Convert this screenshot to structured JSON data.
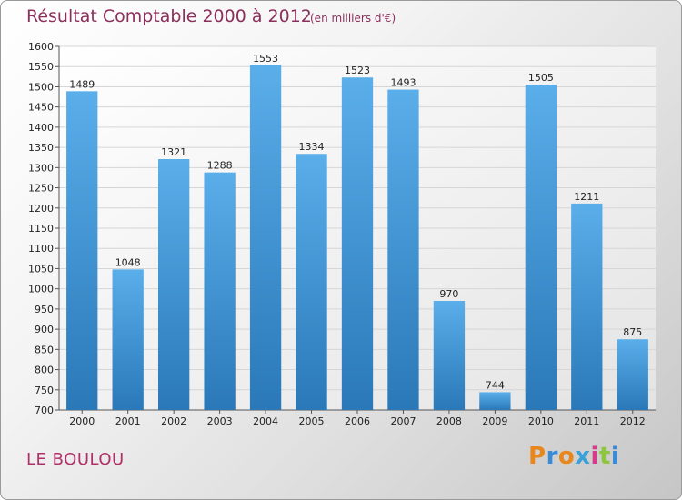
{
  "header": {
    "title": "Résultat Comptable 2000 à 2012",
    "subtitle": "(en milliers d'€)"
  },
  "footer": {
    "commune": "LE BOULOU",
    "logo_text": "Proxiti",
    "logo_colors": [
      "#e8871e",
      "#3a8ad6",
      "#e8871e",
      "#3aa0d8",
      "#d83a8a",
      "#8cc63f",
      "#3a8ad6"
    ]
  },
  "chart_data": {
    "type": "bar",
    "title": "Résultat Comptable 2000 à 2012",
    "subtitle": "(en milliers d'€)",
    "xlabel": "",
    "ylabel": "",
    "categories": [
      "2000",
      "2001",
      "2002",
      "2003",
      "2004",
      "2005",
      "2006",
      "2007",
      "2008",
      "2009",
      "2010",
      "2011",
      "2012"
    ],
    "values": [
      1489,
      1048,
      1321,
      1288,
      1553,
      1334,
      1523,
      1493,
      970,
      744,
      1505,
      1211,
      875
    ],
    "ylim": [
      700,
      1600
    ],
    "ytick_step": 50,
    "grid": true,
    "legend": "none",
    "bar_color_top": "#5aaeea",
    "bar_color_bottom": "#2a78b8"
  }
}
